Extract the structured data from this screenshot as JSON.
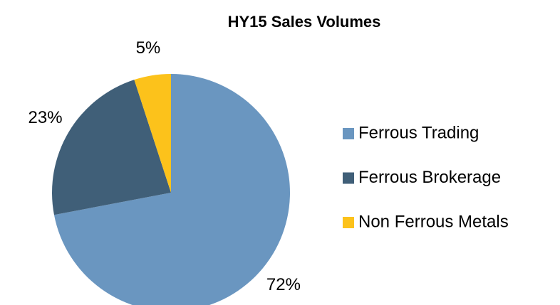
{
  "chart_data": {
    "type": "pie",
    "title": "HY15 Sales Volumes",
    "categories": [
      "Ferrous Trading",
      "Ferrous Brokerage",
      "Non Ferrous Metals"
    ],
    "values": [
      72,
      23,
      5
    ],
    "value_labels": [
      "72%",
      "23%",
      "5%"
    ],
    "colors": [
      "#6a96c0",
      "#405f78",
      "#fcc21b"
    ],
    "legend": "right"
  }
}
